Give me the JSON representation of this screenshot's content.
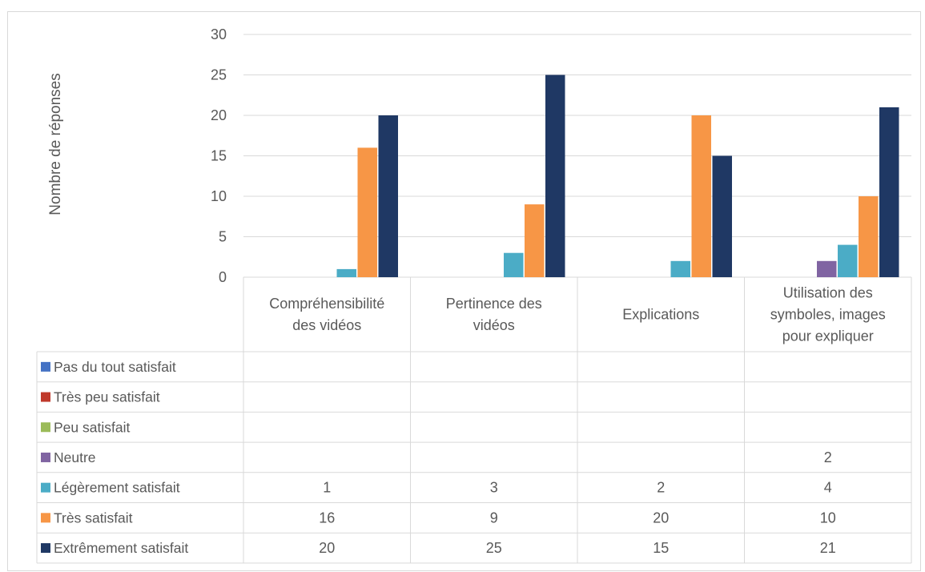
{
  "chart_data": {
    "type": "bar",
    "title": "",
    "xlabel": "",
    "ylabel": "Nombre de réponses",
    "ylim": [
      0,
      30
    ],
    "yticks": [
      0,
      5,
      10,
      15,
      20,
      25,
      30
    ],
    "grid": true,
    "legend": "data-table-bottom",
    "categories": [
      [
        "Compréhensibilité",
        "des vidéos"
      ],
      [
        "Pertinence des",
        "vidéos"
      ],
      [
        "Explications"
      ],
      [
        "Utilisation des",
        "symboles, images",
        "pour expliquer"
      ]
    ],
    "series": [
      {
        "name": "Pas du tout satisfait",
        "color": "#4472C4",
        "values": [
          null,
          null,
          null,
          null
        ]
      },
      {
        "name": "Très peu satisfait",
        "color": "#C0392B",
        "values": [
          null,
          null,
          null,
          null
        ]
      },
      {
        "name": "Peu satisfait",
        "color": "#9BBB59",
        "values": [
          null,
          null,
          null,
          null
        ]
      },
      {
        "name": "Neutre",
        "color": "#8064A2",
        "values": [
          null,
          null,
          null,
          2
        ]
      },
      {
        "name": "Légèrement satisfait",
        "color": "#4BACC6",
        "values": [
          1,
          3,
          2,
          4
        ]
      },
      {
        "name": "Très satisfait",
        "color": "#F79646",
        "values": [
          16,
          9,
          20,
          10
        ]
      },
      {
        "name": "Extrêmement satisfait",
        "color": "#1F3864",
        "values": [
          20,
          25,
          15,
          21
        ]
      }
    ]
  }
}
